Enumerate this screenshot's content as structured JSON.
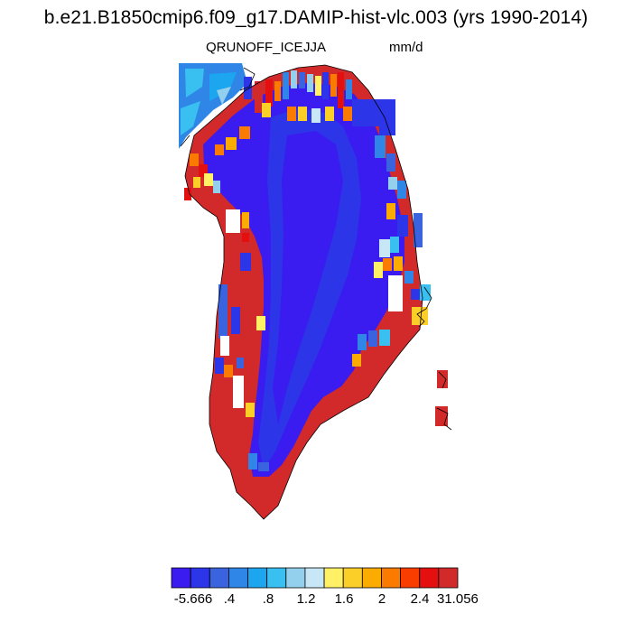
{
  "title": "b.e21.B1850cmip6.f09_g17.DAMIP-hist-vlc.003 (yrs 1990-2014)",
  "variable": "QRUNOFF_ICE",
  "season": "JJA",
  "units": "mm/d",
  "colorbar": {
    "colors": [
      "#3a1bf0",
      "#2c35e8",
      "#3a63e0",
      "#2f86e6",
      "#1ba6ef",
      "#39c0f0",
      "#93d0ee",
      "#c7e7f7",
      "#fff066",
      "#fccf28",
      "#fcab00",
      "#fb7a00",
      "#f93d00",
      "#e41010",
      "#d22a2a"
    ],
    "labels": [
      "-5.666",
      ".4",
      ".8",
      "1.2",
      "1.6",
      "2",
      "2.4",
      "31.056"
    ]
  }
}
